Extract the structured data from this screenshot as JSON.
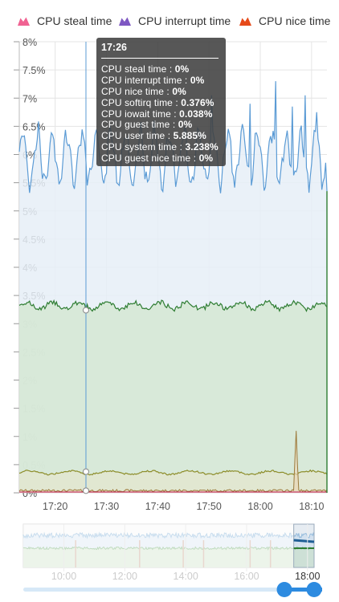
{
  "legend": [
    {
      "label": "CPU steal time",
      "color": "#f06292"
    },
    {
      "label": "CPU interrupt time",
      "color": "#7e57c2"
    },
    {
      "label": "CPU nice time",
      "color": "#e64a19"
    }
  ],
  "tooltip": {
    "time": "17:26",
    "rows": [
      {
        "label": "CPU steal time",
        "value": "0%"
      },
      {
        "label": "CPU interrupt time",
        "value": "0%"
      },
      {
        "label": "CPU nice time",
        "value": "0%"
      },
      {
        "label": "CPU softirq time",
        "value": "0.376%"
      },
      {
        "label": "CPU iowait time",
        "value": "0.038%"
      },
      {
        "label": "CPU guest time",
        "value": "0%"
      },
      {
        "label": "CPU user time",
        "value": "5.885%"
      },
      {
        "label": "CPU system time",
        "value": "3.238%"
      },
      {
        "label": "CPU guest nice time",
        "value": "0%"
      }
    ]
  },
  "chart_data": {
    "type": "area",
    "stacked": true,
    "x_range_minutes": [
      "17:13",
      "18:13"
    ],
    "ylim": [
      0,
      8
    ],
    "y_ticks": [
      "0%",
      "0.5%",
      "1%",
      "1.5%",
      "2%",
      "2.5%",
      "3%",
      "3.5%",
      "4%",
      "4.5%",
      "5%",
      "5.5%",
      "6%",
      "6.5%",
      "7%",
      "7.5%",
      "8%"
    ],
    "x_ticks": [
      "17:20",
      "17:30",
      "17:40",
      "17:50",
      "18:00",
      "18:10"
    ],
    "grid": true,
    "crosshair_time": "17:26",
    "series": [
      {
        "name": "CPU user time",
        "color": "#5b9bd5",
        "fill": "#e6eef7",
        "approx_total_range": [
          5.4,
          7.3
        ],
        "value_at_crosshair": 5.885
      },
      {
        "name": "CPU system time",
        "color": "#2e7d32",
        "fill": "#d5e8d4",
        "approx_range": [
          3.2,
          3.5
        ],
        "value_at_crosshair": 3.238
      },
      {
        "name": "CPU softirq time",
        "color": "#8d8d2a",
        "fill": "#e3e6cf",
        "approx_range": [
          0.3,
          0.45
        ],
        "value_at_crosshair": 0.376
      },
      {
        "name": "CPU iowait time",
        "color": "#9c7a3c",
        "approx_range": [
          0,
          1.2
        ],
        "value_at_crosshair": 0.038
      },
      {
        "name": "CPU steal time",
        "color": "#f06292",
        "value_at_crosshair": 0
      },
      {
        "name": "CPU interrupt time",
        "color": "#7e57c2",
        "value_at_crosshair": 0
      },
      {
        "name": "CPU nice time",
        "color": "#e64a19",
        "value_at_crosshair": 0
      },
      {
        "name": "CPU guest time",
        "value_at_crosshair": 0
      },
      {
        "name": "CPU guest nice time",
        "value_at_crosshair": 0
      }
    ]
  },
  "navigator": {
    "x_ticks": [
      "10:00",
      "12:00",
      "14:00",
      "16:00",
      "18:00"
    ],
    "selection_fraction": [
      0.93,
      1.0
    ]
  }
}
